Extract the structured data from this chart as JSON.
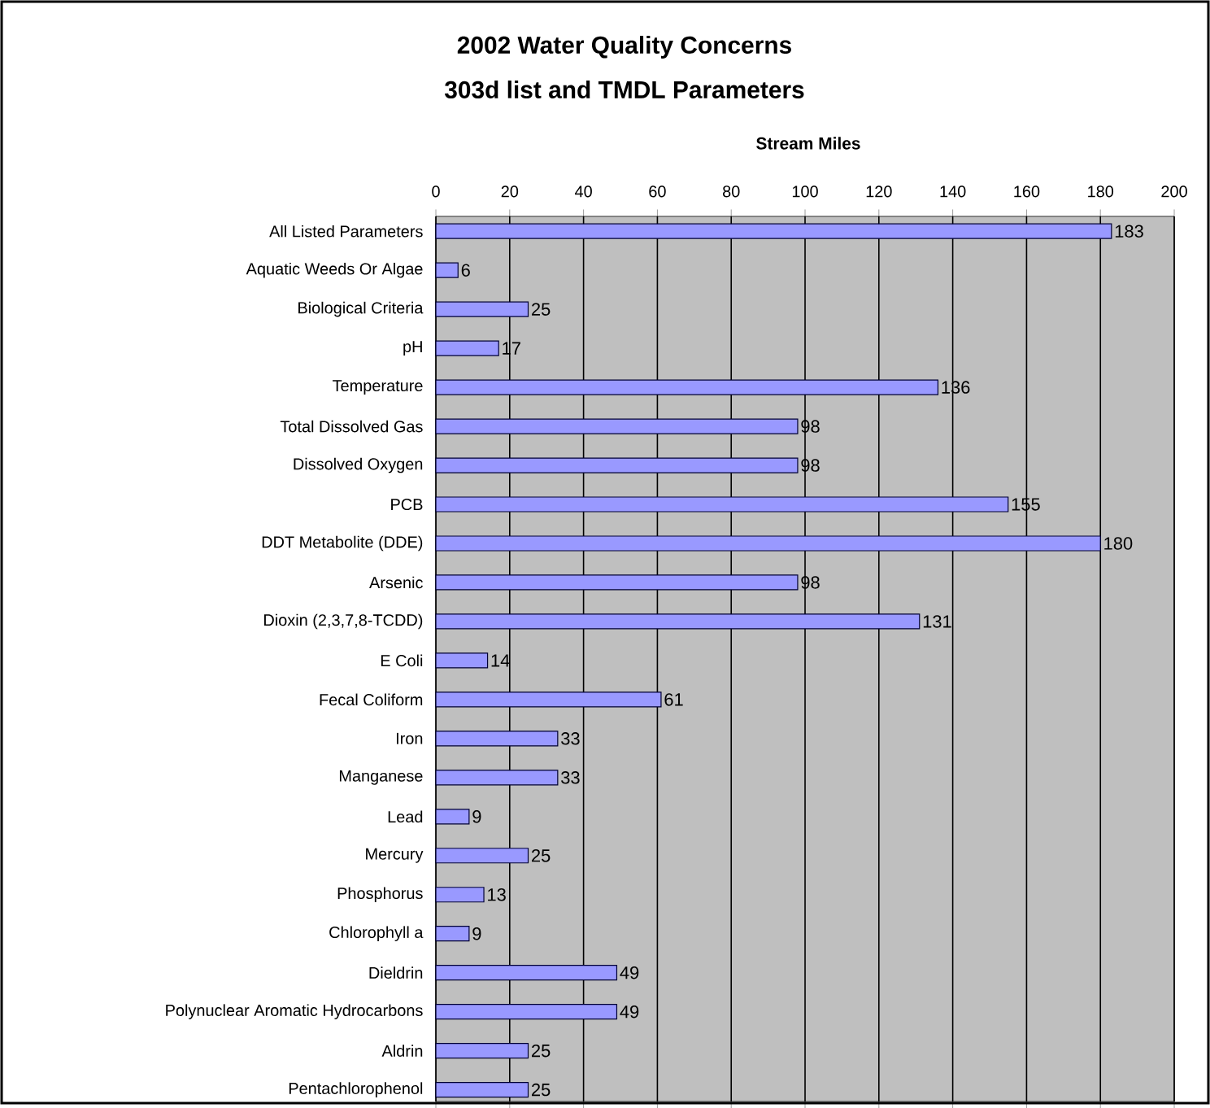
{
  "chart_data": {
    "type": "bar",
    "orientation": "horizontal",
    "title": "2002 Water Quality Concerns",
    "subtitle": "303d list and TMDL Parameters",
    "xlabel": "Stream Miles",
    "categories": [
      "All Listed Parameters",
      "Aquatic Weeds Or Algae",
      "Biological Criteria",
      "pH",
      "Temperature",
      "Total Dissolved Gas",
      "Dissolved Oxygen",
      "PCB",
      "DDT Metabolite (DDE)",
      "Arsenic",
      "Dioxin (2,3,7,8-TCDD)",
      "E Coli",
      "Fecal Coliform",
      "Iron",
      "Manganese",
      "Lead",
      "Mercury",
      "Phosphorus",
      "Chlorophyll a",
      "Dieldrin",
      "Polynuclear Aromatic Hydrocarbons",
      "Aldrin",
      "Pentachlorophenol"
    ],
    "values": [
      183,
      6,
      25,
      17,
      136,
      98,
      98,
      155,
      180,
      98,
      131,
      14,
      61,
      33,
      33,
      9,
      25,
      13,
      9,
      49,
      49,
      25,
      25
    ],
    "color": "#9999ff",
    "xlim": [
      0,
      200
    ],
    "xticks": [
      0,
      20,
      40,
      60,
      80,
      100,
      120,
      140,
      160,
      180,
      200
    ],
    "grid": "x",
    "data_labels": true
  }
}
